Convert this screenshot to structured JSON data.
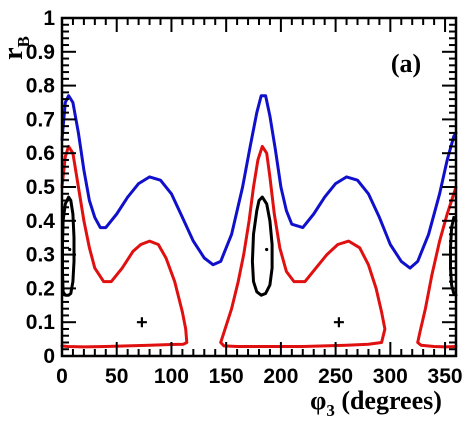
{
  "chart_data": {
    "type": "line",
    "title": "",
    "panel_label": "(a)",
    "xlabel": {
      "symbol": "φ",
      "subscript": "3",
      "text": " (degrees)"
    },
    "ylabel": {
      "symbol": "r",
      "subscript": "B"
    },
    "xlim": [
      0,
      360
    ],
    "ylim": [
      0,
      1
    ],
    "xticks": [
      0,
      50,
      100,
      150,
      200,
      250,
      300,
      350
    ],
    "yticks": [
      0,
      0.1,
      0.2,
      0.3,
      0.4,
      0.5,
      0.6,
      0.7,
      0.8,
      0.9,
      1
    ],
    "ytick_labels": [
      "0",
      "0.1",
      "0.2",
      "0.3",
      "0.4",
      "0.5",
      "0.6",
      "0.7",
      "0.8",
      "0.9",
      "1"
    ],
    "grid": false,
    "series": [
      {
        "color": "#1010cc",
        "closed": false,
        "points": [
          [
            0,
            0.64
          ],
          [
            3,
            0.75
          ],
          [
            6,
            0.77
          ],
          [
            10,
            0.75
          ],
          [
            15,
            0.66
          ],
          [
            20,
            0.55
          ],
          [
            25,
            0.46
          ],
          [
            30,
            0.41
          ],
          [
            35,
            0.38
          ],
          [
            40,
            0.38
          ],
          [
            50,
            0.42
          ],
          [
            60,
            0.47
          ],
          [
            70,
            0.51
          ],
          [
            80,
            0.53
          ],
          [
            90,
            0.52
          ],
          [
            100,
            0.48
          ],
          [
            110,
            0.41
          ],
          [
            120,
            0.34
          ],
          [
            130,
            0.29
          ],
          [
            138,
            0.27
          ],
          [
            145,
            0.28
          ],
          [
            155,
            0.36
          ],
          [
            165,
            0.5
          ],
          [
            172,
            0.62
          ],
          [
            178,
            0.72
          ],
          [
            182,
            0.77
          ],
          [
            186,
            0.77
          ],
          [
            190,
            0.71
          ],
          [
            195,
            0.61
          ],
          [
            200,
            0.5
          ],
          [
            205,
            0.43
          ],
          [
            210,
            0.39
          ],
          [
            220,
            0.38
          ],
          [
            230,
            0.42
          ],
          [
            240,
            0.47
          ],
          [
            250,
            0.51
          ],
          [
            260,
            0.53
          ],
          [
            270,
            0.52
          ],
          [
            280,
            0.48
          ],
          [
            290,
            0.41
          ],
          [
            300,
            0.33
          ],
          [
            310,
            0.28
          ],
          [
            318,
            0.26
          ],
          [
            325,
            0.28
          ],
          [
            335,
            0.36
          ],
          [
            345,
            0.48
          ],
          [
            352,
            0.58
          ],
          [
            358,
            0.65
          ],
          [
            360,
            0.66
          ]
        ]
      },
      {
        "color": "#e01010",
        "closed": false,
        "points": [
          [
            0,
            0.5
          ],
          [
            3,
            0.59
          ],
          [
            6,
            0.62
          ],
          [
            10,
            0.6
          ],
          [
            15,
            0.5
          ],
          [
            20,
            0.4
          ],
          [
            25,
            0.32
          ],
          [
            30,
            0.26
          ],
          [
            38,
            0.22
          ],
          [
            45,
            0.22
          ],
          [
            55,
            0.26
          ],
          [
            65,
            0.31
          ],
          [
            72,
            0.33
          ],
          [
            80,
            0.34
          ],
          [
            88,
            0.33
          ],
          [
            95,
            0.29
          ],
          [
            103,
            0.22
          ],
          [
            110,
            0.13
          ],
          [
            113,
            0.08
          ],
          [
            114,
            0.04
          ],
          [
            111,
            0.035
          ],
          [
            100,
            0.034
          ],
          [
            80,
            0.032
          ],
          [
            60,
            0.03
          ],
          [
            40,
            0.028
          ],
          [
            20,
            0.027
          ],
          [
            5,
            0.028
          ],
          [
            0,
            0.03
          ]
        ]
      },
      {
        "color": "#e01010",
        "closed": true,
        "points": [
          [
            183,
            0.62
          ],
          [
            179,
            0.58
          ],
          [
            175,
            0.5
          ],
          [
            171,
            0.4
          ],
          [
            166,
            0.3
          ],
          [
            161,
            0.22
          ],
          [
            155,
            0.14
          ],
          [
            148,
            0.07
          ],
          [
            145,
            0.04
          ],
          [
            148,
            0.03
          ],
          [
            160,
            0.028
          ],
          [
            180,
            0.028
          ],
          [
            200,
            0.028
          ],
          [
            220,
            0.028
          ],
          [
            240,
            0.03
          ],
          [
            260,
            0.032
          ],
          [
            280,
            0.035
          ],
          [
            292,
            0.04
          ],
          [
            295,
            0.08
          ],
          [
            292,
            0.13
          ],
          [
            287,
            0.2
          ],
          [
            280,
            0.27
          ],
          [
            272,
            0.32
          ],
          [
            262,
            0.34
          ],
          [
            252,
            0.33
          ],
          [
            242,
            0.3
          ],
          [
            232,
            0.26
          ],
          [
            222,
            0.22
          ],
          [
            212,
            0.22
          ],
          [
            205,
            0.25
          ],
          [
            199,
            0.32
          ],
          [
            194,
            0.42
          ],
          [
            190,
            0.53
          ],
          [
            187,
            0.6
          ]
        ]
      },
      {
        "color": "#e01010",
        "closed": false,
        "points": [
          [
            360,
            0.5
          ],
          [
            357,
            0.47
          ],
          [
            352,
            0.42
          ],
          [
            345,
            0.34
          ],
          [
            338,
            0.24
          ],
          [
            332,
            0.14
          ],
          [
            327,
            0.07
          ],
          [
            325,
            0.04
          ],
          [
            328,
            0.032
          ],
          [
            340,
            0.028
          ],
          [
            350,
            0.027
          ],
          [
            360,
            0.028
          ]
        ]
      },
      {
        "color": "#000000",
        "closed": true,
        "points": [
          [
            6,
            0.47
          ],
          [
            8,
            0.46
          ],
          [
            10,
            0.42
          ],
          [
            11,
            0.35
          ],
          [
            11,
            0.28
          ],
          [
            10,
            0.22
          ],
          [
            8,
            0.185
          ],
          [
            6,
            0.18
          ],
          [
            3,
            0.18
          ],
          [
            1,
            0.19
          ],
          [
            0.5,
            0.25
          ],
          [
            0.5,
            0.33
          ],
          [
            1,
            0.4
          ],
          [
            3,
            0.45
          ]
        ]
      },
      {
        "color": "#000000",
        "closed": true,
        "points": [
          [
            183,
            0.47
          ],
          [
            187,
            0.45
          ],
          [
            190,
            0.4
          ],
          [
            192,
            0.33
          ],
          [
            192,
            0.26
          ],
          [
            190,
            0.21
          ],
          [
            186,
            0.185
          ],
          [
            182,
            0.18
          ],
          [
            178,
            0.19
          ],
          [
            175,
            0.22
          ],
          [
            174,
            0.28
          ],
          [
            175,
            0.36
          ],
          [
            178,
            0.43
          ],
          [
            180,
            0.46
          ]
        ]
      },
      {
        "color": "#000000",
        "closed": false,
        "points": [
          [
            360,
            0.4
          ],
          [
            358,
            0.41
          ],
          [
            356,
            0.38
          ],
          [
            355,
            0.32
          ],
          [
            355,
            0.26
          ],
          [
            356,
            0.21
          ],
          [
            358,
            0.185
          ],
          [
            360,
            0.18
          ]
        ]
      }
    ],
    "markers": [
      {
        "type": "cross",
        "x": 73,
        "y": 0.1
      },
      {
        "type": "cross",
        "x": 253,
        "y": 0.1
      },
      {
        "type": "dot",
        "x": 7,
        "y": 0.315
      },
      {
        "type": "dot",
        "x": 187,
        "y": 0.315
      }
    ]
  }
}
